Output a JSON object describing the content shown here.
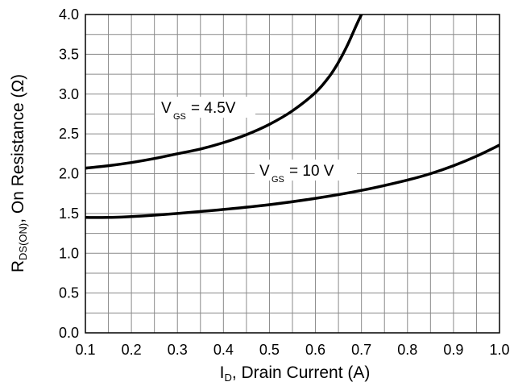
{
  "chart_data": {
    "type": "line",
    "xlabel": {
      "main": "I",
      "sub": "D",
      "rest": ", Drain Current (A)"
    },
    "ylabel": {
      "main": "R",
      "sub": "DS(ON)",
      "rest": ", On Resistance (Ω)"
    },
    "xlim": [
      0.1,
      1.0
    ],
    "ylim": [
      0.0,
      4.0
    ],
    "x_ticks": [
      "0.1",
      "0.2",
      "0.3",
      "0.4",
      "0.5",
      "0.6",
      "0.7",
      "0.8",
      "0.9",
      "1.0"
    ],
    "y_ticks": [
      "0.0",
      "0.5",
      "1.0",
      "1.5",
      "2.0",
      "2.5",
      "3.0",
      "3.5",
      "4.0"
    ],
    "grid": true,
    "series": [
      {
        "name": "VGS = 4.5V",
        "label": {
          "main": "V",
          "sub": "GS",
          "rest": "= 4.5V"
        },
        "x": [
          0.1,
          0.15,
          0.2,
          0.25,
          0.3,
          0.35,
          0.4,
          0.45,
          0.5,
          0.55,
          0.6,
          0.63,
          0.65,
          0.67,
          0.69,
          0.7
        ],
        "y": [
          2.07,
          2.1,
          2.14,
          2.19,
          2.25,
          2.31,
          2.39,
          2.49,
          2.62,
          2.79,
          3.02,
          3.22,
          3.4,
          3.62,
          3.88,
          4.0
        ]
      },
      {
        "name": "VGS = 10 V",
        "label": {
          "main": "V",
          "sub": "GS",
          "rest": "= 10 V"
        },
        "x": [
          0.1,
          0.15,
          0.2,
          0.3,
          0.4,
          0.5,
          0.6,
          0.7,
          0.8,
          0.85,
          0.9,
          0.95,
          1.0
        ],
        "y": [
          1.45,
          1.45,
          1.46,
          1.5,
          1.55,
          1.61,
          1.69,
          1.79,
          1.92,
          2.0,
          2.1,
          2.22,
          2.36
        ]
      }
    ]
  }
}
